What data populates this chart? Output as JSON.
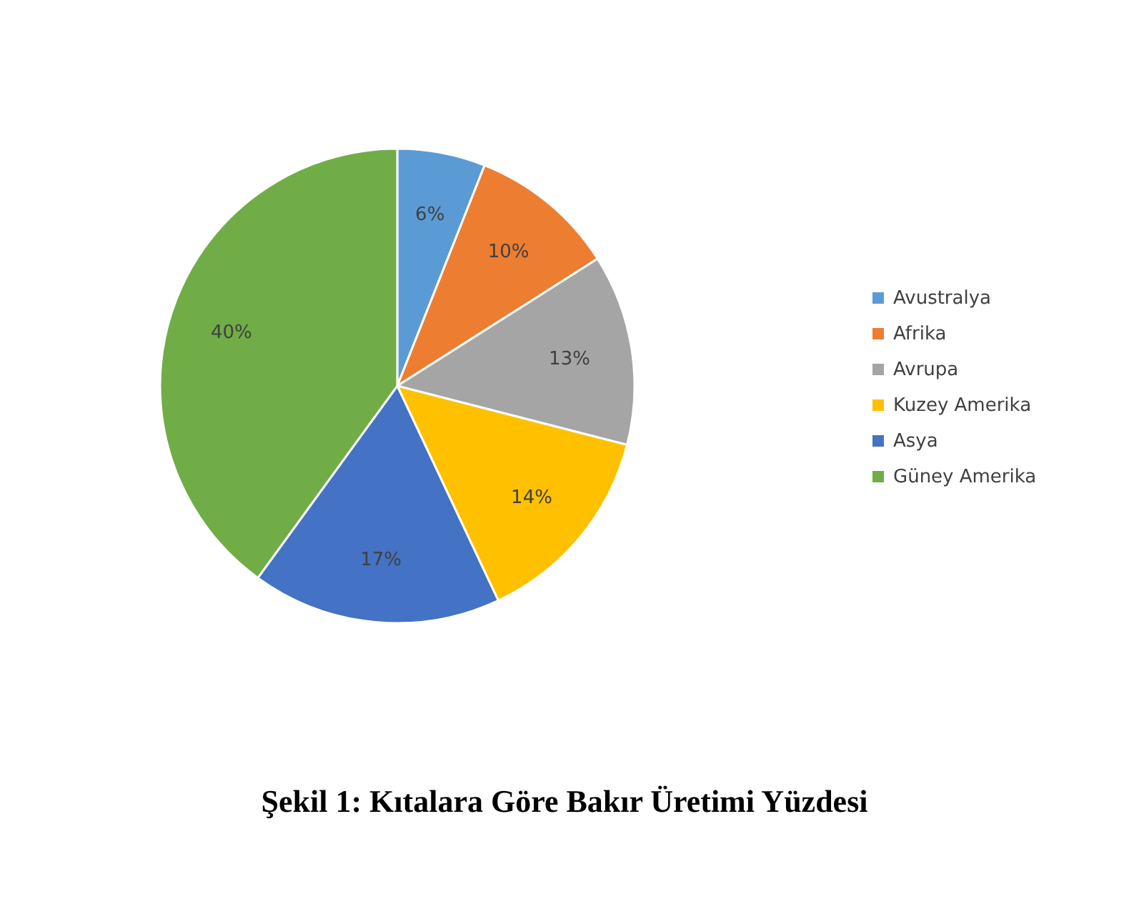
{
  "chart_data": {
    "type": "pie",
    "title": "Şekil 1: Kıtalara Göre Bakır Üretimi Yüzdesi",
    "categories": [
      "Avustralya",
      "Afrika",
      "Avrupa",
      "Kuzey Amerika",
      "Asya",
      "Güney Amerika"
    ],
    "values": [
      6,
      10,
      13,
      14,
      17,
      40
    ],
    "value_labels": [
      "6%",
      "10%",
      "13%",
      "14%",
      "17%",
      "40%"
    ],
    "colors": [
      "#5b9bd5",
      "#ed7d31",
      "#a5a5a5",
      "#ffc000",
      "#4472c4",
      "#70ad47"
    ],
    "legend": "right"
  }
}
